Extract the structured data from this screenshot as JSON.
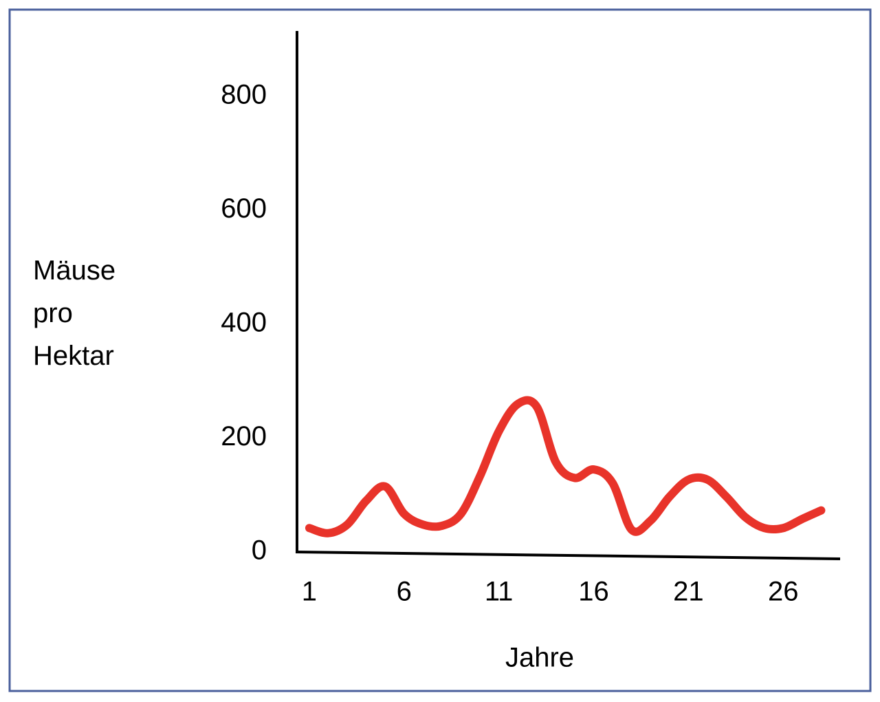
{
  "chart_data": {
    "type": "line",
    "x_label": "Jahre",
    "y_label": "Mäuse pro Hektar",
    "x": [
      1,
      2,
      3,
      4,
      5,
      6,
      7,
      8,
      9,
      10,
      11,
      12,
      13,
      14,
      15,
      16,
      17,
      18,
      19,
      20,
      21,
      22,
      23,
      24,
      25,
      26,
      27,
      28
    ],
    "series": [
      {
        "color": "#e8332a",
        "values": [
          42,
          33,
          48,
          90,
          115,
          67,
          48,
          46,
          67,
          133,
          212,
          260,
          255,
          158,
          130,
          145,
          121,
          39,
          55,
          97,
          127,
          127,
          97,
          61,
          42,
          42,
          58,
          73
        ]
      }
    ],
    "xlim": [
      0.35,
      29
    ],
    "xticks": [
      1,
      6,
      11,
      16,
      21,
      26
    ],
    "ylim": [
      0,
      915
    ],
    "yticks": [
      0,
      200,
      400,
      600,
      800
    ],
    "grid": false
  }
}
